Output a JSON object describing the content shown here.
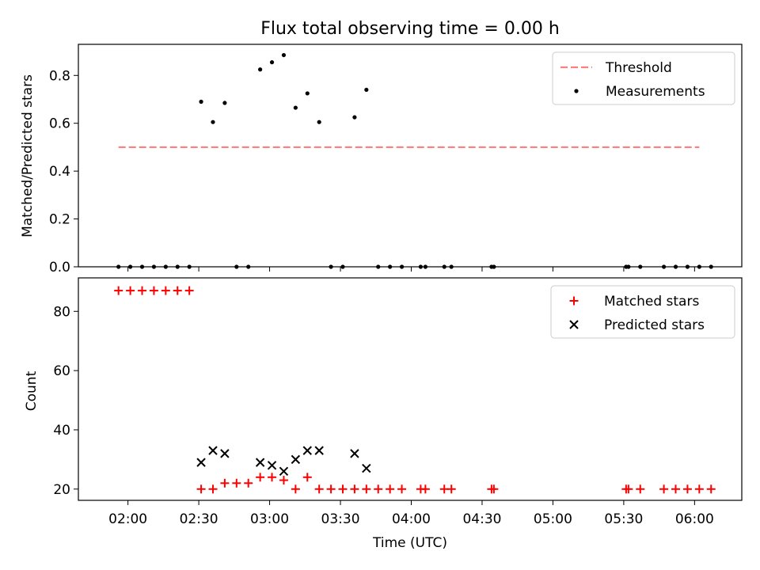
{
  "chart_data": [
    {
      "type": "scatter",
      "title": "Flux total observing time = 0.00 h",
      "ylabel": "Matched/Predicted stars",
      "xlabel": "",
      "ylim": [
        0,
        0.93
      ],
      "yticks": [
        0.0,
        0.2,
        0.4,
        0.6,
        0.8
      ],
      "ytick_labels": [
        "0.0",
        "0.2",
        "0.4",
        "0.6",
        "0.8"
      ],
      "legend_position": "top-right",
      "series": [
        {
          "name": "Threshold",
          "kind": "line",
          "style": "dashed",
          "color": "#ff7f7f",
          "points": [
            [
              "01:56",
              0.5
            ],
            [
              "06:02",
              0.5
            ]
          ]
        },
        {
          "name": "Measurements",
          "kind": "scatter",
          "marker": "dot",
          "color": "#000000",
          "points": [
            [
              "01:56",
              0
            ],
            [
              "02:01",
              0
            ],
            [
              "02:06",
              0
            ],
            [
              "02:11",
              0
            ],
            [
              "02:16",
              0
            ],
            [
              "02:21",
              0
            ],
            [
              "02:26",
              0
            ],
            [
              "02:31",
              0.69
            ],
            [
              "02:36",
              0.605
            ],
            [
              "02:41",
              0.685
            ],
            [
              "02:46",
              0
            ],
            [
              "02:51",
              0
            ],
            [
              "02:56",
              0.825
            ],
            [
              "03:01",
              0.855
            ],
            [
              "03:06",
              0.885
            ],
            [
              "03:11",
              0.665
            ],
            [
              "03:16",
              0.725
            ],
            [
              "03:21",
              0.605
            ],
            [
              "03:26",
              0
            ],
            [
              "03:31",
              0
            ],
            [
              "03:36",
              0.625
            ],
            [
              "03:41",
              0.74
            ],
            [
              "03:46",
              0
            ],
            [
              "03:51",
              0
            ],
            [
              "03:56",
              0
            ],
            [
              "04:04",
              0
            ],
            [
              "04:06",
              0
            ],
            [
              "04:14",
              0
            ],
            [
              "04:17",
              0
            ],
            [
              "04:34",
              0
            ],
            [
              "04:35",
              0
            ],
            [
              "05:31",
              0
            ],
            [
              "05:32",
              0
            ],
            [
              "05:37",
              0
            ],
            [
              "05:47",
              0
            ],
            [
              "05:52",
              0
            ],
            [
              "05:57",
              0
            ],
            [
              "06:02",
              0
            ],
            [
              "06:07",
              0
            ]
          ]
        }
      ]
    },
    {
      "type": "scatter",
      "title": "",
      "xlabel": "Time (UTC)",
      "ylabel": "Count",
      "ylim": [
        16.2,
        91.3
      ],
      "yticks": [
        20,
        40,
        60,
        80
      ],
      "ytick_labels": [
        "20",
        "40",
        "60",
        "80"
      ],
      "xticks": [
        "02:00",
        "02:30",
        "03:00",
        "03:30",
        "04:00",
        "04:30",
        "05:00",
        "05:30",
        "06:00"
      ],
      "xlim": [
        "01:39",
        "06:20"
      ],
      "legend_position": "top-right",
      "series": [
        {
          "name": "Matched stars",
          "kind": "scatter",
          "marker": "plus",
          "color": "#ff0000",
          "points": [
            [
              "01:56",
              87
            ],
            [
              "02:01",
              87
            ],
            [
              "02:06",
              87
            ],
            [
              "02:11",
              87
            ],
            [
              "02:16",
              87
            ],
            [
              "02:21",
              87
            ],
            [
              "02:26",
              87
            ],
            [
              "02:31",
              20
            ],
            [
              "02:36",
              20
            ],
            [
              "02:41",
              22
            ],
            [
              "02:46",
              22
            ],
            [
              "02:51",
              22
            ],
            [
              "02:56",
              24
            ],
            [
              "03:01",
              24
            ],
            [
              "03:06",
              23
            ],
            [
              "03:11",
              20
            ],
            [
              "03:16",
              24
            ],
            [
              "03:21",
              20
            ],
            [
              "03:26",
              20
            ],
            [
              "03:31",
              20
            ],
            [
              "03:36",
              20
            ],
            [
              "03:41",
              20
            ],
            [
              "03:46",
              20
            ],
            [
              "03:51",
              20
            ],
            [
              "03:56",
              20
            ],
            [
              "04:04",
              20
            ],
            [
              "04:06",
              20
            ],
            [
              "04:14",
              20
            ],
            [
              "04:17",
              20
            ],
            [
              "04:34",
              20
            ],
            [
              "04:35",
              20
            ],
            [
              "05:31",
              20
            ],
            [
              "05:32",
              20
            ],
            [
              "05:37",
              20
            ],
            [
              "05:47",
              20
            ],
            [
              "05:52",
              20
            ],
            [
              "05:57",
              20
            ],
            [
              "06:02",
              20
            ],
            [
              "06:07",
              20
            ]
          ]
        },
        {
          "name": "Predicted stars",
          "kind": "scatter",
          "marker": "x",
          "color": "#000000",
          "points": [
            [
              "02:31",
              29
            ],
            [
              "02:36",
              33
            ],
            [
              "02:41",
              32
            ],
            [
              "02:56",
              29
            ],
            [
              "03:01",
              28
            ],
            [
              "03:06",
              26
            ],
            [
              "03:11",
              30
            ],
            [
              "03:16",
              33
            ],
            [
              "03:21",
              33
            ],
            [
              "03:36",
              32
            ],
            [
              "03:41",
              27
            ]
          ]
        }
      ]
    }
  ]
}
